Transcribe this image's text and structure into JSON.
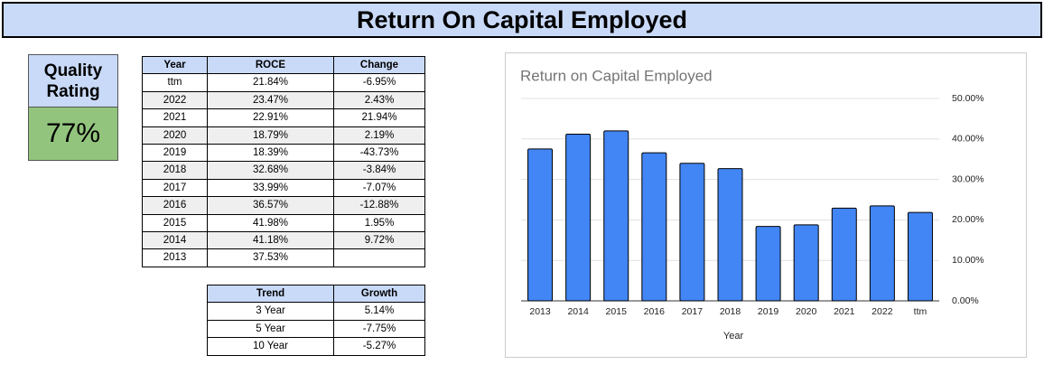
{
  "header": {
    "title": "Return On Capital Employed"
  },
  "quality": {
    "label": "Quality Rating",
    "value": "77%"
  },
  "table": {
    "header": [
      "Year",
      "ROCE",
      "Change"
    ],
    "rows": [
      [
        "ttm",
        "21.84%",
        "-6.95%"
      ],
      [
        "2022",
        "23.47%",
        "2.43%"
      ],
      [
        "2021",
        "22.91%",
        "21.94%"
      ],
      [
        "2020",
        "18.79%",
        "2.19%"
      ],
      [
        "2019",
        "18.39%",
        "-43.73%"
      ],
      [
        "2018",
        "32.68%",
        "-3.84%"
      ],
      [
        "2017",
        "33.99%",
        "-7.07%"
      ],
      [
        "2016",
        "36.57%",
        "-12.88%"
      ],
      [
        "2015",
        "41.98%",
        "1.95%"
      ],
      [
        "2014",
        "41.18%",
        "9.72%"
      ],
      [
        "2013",
        "37.53%",
        null
      ]
    ]
  },
  "trend": {
    "header": [
      "Trend",
      "Growth"
    ],
    "rows": [
      [
        "3 Year",
        "5.14%"
      ],
      [
        "5 Year",
        "-7.75%"
      ],
      [
        "10 Year",
        "-5.27%"
      ]
    ]
  },
  "chart_data": {
    "type": "bar",
    "title": "Return on Capital Employed",
    "x_label": "Year",
    "categories": [
      "2013",
      "2014",
      "2015",
      "2016",
      "2017",
      "2018",
      "2019",
      "2020",
      "2021",
      "2022",
      "ttm"
    ],
    "values": [
      37.53,
      41.18,
      41.98,
      36.57,
      33.99,
      32.68,
      18.39,
      18.79,
      22.91,
      23.47,
      21.84
    ],
    "color": "#4285f4",
    "ylim": [
      0,
      50
    ],
    "yticks": [
      {
        "value": 0,
        "label": "0.00%"
      },
      {
        "value": 10,
        "label": "10.00%"
      },
      {
        "value": 20,
        "label": "20.00%"
      },
      {
        "value": 30,
        "label": "30.00%"
      },
      {
        "value": 40,
        "label": "40.00%"
      },
      {
        "value": 50,
        "label": "50.00%"
      }
    ],
    "grid": true
  }
}
